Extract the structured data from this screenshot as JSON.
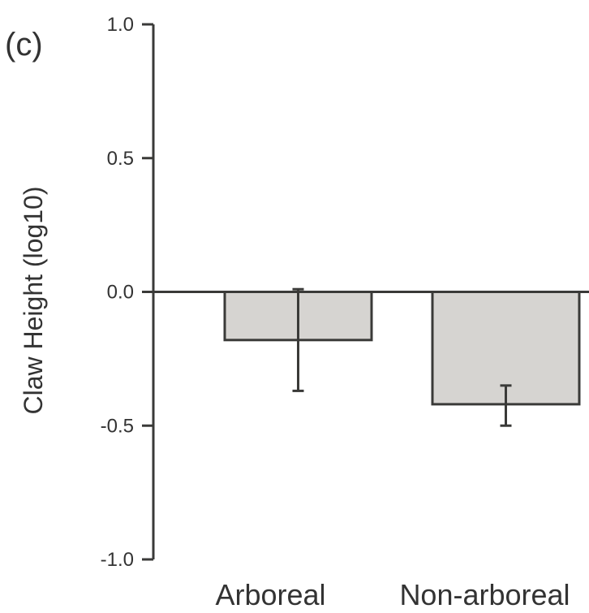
{
  "chart_data": {
    "type": "bar",
    "panel_label": "(c)",
    "title": "",
    "xlabel": "",
    "ylabel": "Claw Height (log10)",
    "categories": [
      "Arboreal",
      "Non-arboreal"
    ],
    "values": [
      -0.18,
      -0.42
    ],
    "error_low": [
      -0.37,
      -0.5
    ],
    "error_high": [
      0.01,
      -0.35
    ],
    "ylim": [
      -1.0,
      1.0
    ],
    "yticks": [
      "1.0",
      "0.5",
      "0.0",
      "-0.5",
      "-1.0"
    ],
    "ytick_values": [
      1.0,
      0.5,
      0.0,
      -0.5,
      -1.0
    ],
    "grid": false,
    "legend": "none",
    "colors": {
      "bar_fill": "#d6d4d1",
      "bar_stroke": "#3a3a38",
      "axis": "#3a3a38",
      "text": "#333333"
    }
  }
}
